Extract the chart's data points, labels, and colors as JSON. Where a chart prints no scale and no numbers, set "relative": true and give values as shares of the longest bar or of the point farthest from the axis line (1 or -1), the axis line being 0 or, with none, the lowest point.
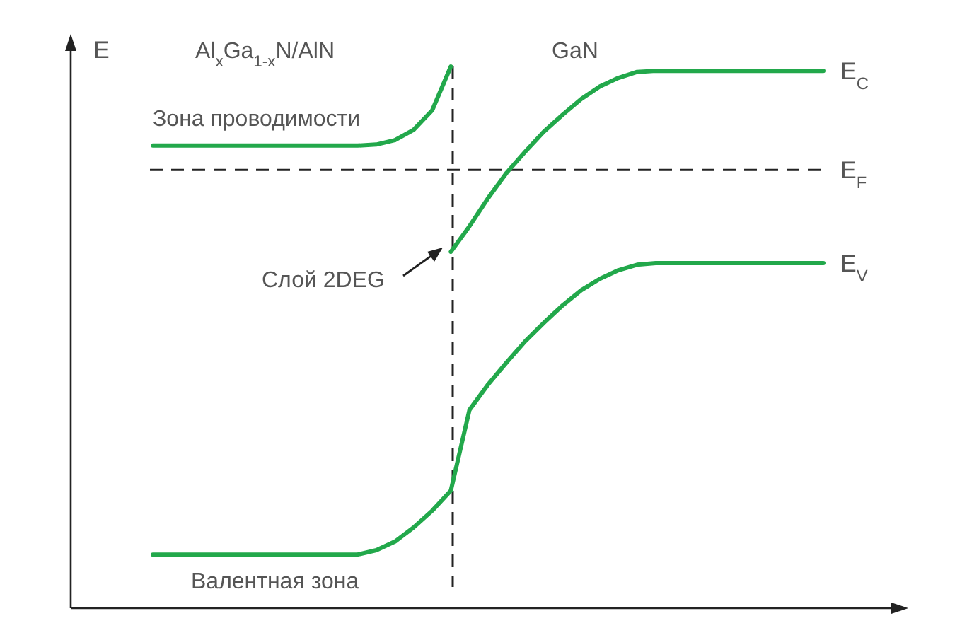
{
  "chart_data": {
    "type": "line",
    "relative": true,
    "ylabel": "E",
    "categories": [
      null,
      null,
      null,
      null,
      null,
      null,
      null,
      null,
      null,
      null,
      null,
      null,
      null,
      null,
      null,
      null,
      null,
      null,
      null,
      null,
      null,
      null,
      null,
      null,
      null,
      null,
      null,
      null,
      null,
      null,
      null,
      null,
      null,
      null,
      null,
      null,
      null
    ],
    "series": [
      {
        "color": "#22a84b",
        "values": [
          0.854,
          0.854,
          0.854,
          0.854,
          0.854,
          0.854,
          0.854,
          0.854,
          0.854,
          0.854,
          0.854,
          0.854,
          0.856,
          0.864,
          0.883,
          0.919,
          1,
          null,
          null,
          null,
          null,
          null,
          null,
          null,
          null,
          null,
          null,
          null,
          null,
          null,
          null,
          null,
          null,
          null,
          null,
          null,
          null
        ]
      },
      {
        "name": "E$_{C}$",
        "color": "#22a84b",
        "values": [
          null,
          null,
          null,
          null,
          null,
          null,
          null,
          null,
          null,
          null,
          null,
          null,
          null,
          null,
          null,
          null,
          0.658,
          0.705,
          0.757,
          0.804,
          0.843,
          0.88,
          0.911,
          0.94,
          0.963,
          0.979,
          0.99,
          0.992,
          0.992,
          0.992,
          0.992,
          0.992,
          0.992,
          0.992,
          0.992,
          0.992,
          0.992
        ]
      },
      {
        "name": "E$_{V}$",
        "color": "#22a84b",
        "values": [
          0.099,
          0.099,
          0.099,
          0.099,
          0.099,
          0.099,
          0.099,
          0.099,
          0.099,
          0.099,
          0.099,
          0.099,
          0.107,
          0.123,
          0.149,
          0.18,
          0.217,
          0.366,
          0.413,
          0.454,
          0.493,
          0.527,
          0.559,
          0.587,
          0.608,
          0.624,
          0.634,
          0.637,
          0.637,
          0.637,
          0.637,
          0.637,
          0.637,
          0.637,
          0.637,
          0.637,
          0.637
        ]
      }
    ],
    "ref_lines": [
      {
        "axis": "y",
        "value": 0.809,
        "label": "E$_{F}$",
        "color": "#222222",
        "line_style": "dashed"
      }
    ],
    "annotations": [
      "Al$_{x}$Ga$_{1-x}$N/AlN",
      "GaN",
      "Зона проводимости",
      "Слой 2DEG",
      "Валентная зона"
    ],
    "legend": false,
    "grid": false,
    "marker": "none",
    "line_style": "solid"
  }
}
